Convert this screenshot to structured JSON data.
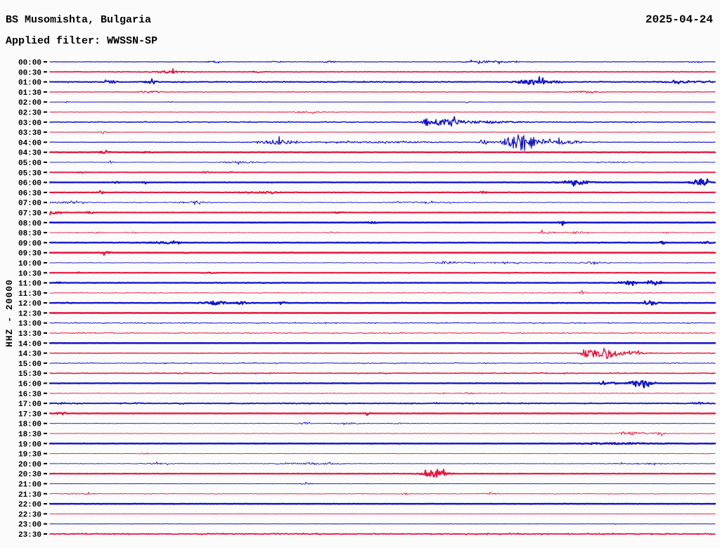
{
  "header": {
    "station": "BS Musomishta, Bulgaria",
    "filter": "Applied filter: WWSSN-SP",
    "date": "2025-04-24"
  },
  "scale_label": "HHZ - 20000",
  "colors": {
    "blue": "#1414cc",
    "red": "#e8143c",
    "tick": "#000000",
    "text": "#000000",
    "background": "#fbfbfb"
  },
  "chart_data": {
    "type": "helicorder",
    "title": "BS Musomishta, Bulgaria",
    "filter": "WWSSN-SP",
    "date": "2025-04-24",
    "channel_scale": "HHZ - 20000",
    "minutes_per_line": 30,
    "line_colors_alternate": [
      "blue",
      "red"
    ],
    "rows": [
      {
        "time": "00:00",
        "color": "blue",
        "lw": 1.2,
        "base": 0.5,
        "spk": 0.05,
        "bursts": [
          [
            303,
            10,
            1.1
          ],
          [
            395,
            12,
            0.9
          ],
          [
            470,
            12,
            0.9
          ],
          [
            695,
            35,
            1.4
          ],
          [
            988,
            10,
            0.9
          ]
        ]
      },
      {
        "time": "00:30",
        "color": "red",
        "lw": 1.7,
        "base": 0.4,
        "spk": 0.04,
        "bursts": [
          [
            243,
            20,
            1.7
          ],
          [
            368,
            8,
            1.1
          ]
        ]
      },
      {
        "time": "01:00",
        "color": "blue",
        "lw": 1.9,
        "base": 0.8,
        "spk": 0.06,
        "bursts": [
          [
            158,
            11,
            1.4
          ],
          [
            215,
            11,
            1.4
          ],
          [
            763,
            26,
            3.5
          ],
          [
            975,
            35,
            0.9
          ]
        ]
      },
      {
        "time": "01:30",
        "color": "red",
        "lw": 1.2,
        "base": 0.55,
        "spk": 0.05,
        "bursts": [
          [
            214,
            15,
            1.5
          ],
          [
            830,
            20,
            1.1
          ]
        ]
      },
      {
        "time": "02:00",
        "color": "blue",
        "lw": 1.0,
        "base": 0.3,
        "spk": 0.03,
        "bursts": [
          [
            95,
            2,
            1.6
          ],
          [
            242,
            5,
            0.9
          ],
          [
            665,
            3,
            1.6
          ]
        ]
      },
      {
        "time": "02:30",
        "color": "red",
        "lw": 1.0,
        "base": 0.5,
        "spk": 0.06,
        "bursts": [
          [
            438,
            28,
            0.9
          ]
        ]
      },
      {
        "time": "03:00",
        "color": "blue",
        "lw": 1.5,
        "base": 0.9,
        "spk": 0.06,
        "bursts": [
          [
            606,
            4,
            3.0
          ],
          [
            630,
            24,
            4.2
          ],
          [
            690,
            50,
            1.2
          ]
        ]
      },
      {
        "time": "03:30",
        "color": "red",
        "lw": 1.0,
        "base": 0.35,
        "spk": 0.03,
        "bursts": [
          [
            148,
            4,
            2.6
          ]
        ]
      },
      {
        "time": "04:00",
        "color": "blue",
        "lw": 1.2,
        "base": 0.5,
        "spk": 0.05,
        "bursts": [
          [
            395,
            24,
            3.2
          ],
          [
            540,
            90,
            0.9
          ],
          [
            688,
            5,
            6.5
          ],
          [
            742,
            25,
            12.0
          ],
          [
            800,
            28,
            2.6
          ]
        ]
      },
      {
        "time": "04:30",
        "color": "red",
        "lw": 2.3,
        "base": 0.4,
        "spk": 0.04,
        "bursts": [
          [
            148,
            8,
            1.4
          ],
          [
            210,
            6,
            1.1
          ]
        ]
      },
      {
        "time": "05:00",
        "color": "blue",
        "lw": 0.9,
        "base": 0.5,
        "spk": 0.05,
        "bursts": [
          [
            157,
            3,
            2.0
          ],
          [
            340,
            30,
            1.2
          ],
          [
            870,
            38,
            0.8
          ]
        ]
      },
      {
        "time": "05:30",
        "color": "red",
        "lw": 1.8,
        "base": 0.4,
        "spk": 0.04,
        "bursts": [
          [
            115,
            4,
            1.4
          ],
          [
            293,
            5,
            1.2
          ],
          [
            327,
            4,
            1.0
          ]
        ]
      },
      {
        "time": "06:00",
        "color": "blue",
        "lw": 2.3,
        "base": 0.4,
        "spk": 0.04,
        "bursts": [
          [
            165,
            4,
            1.0
          ],
          [
            207,
            4,
            1.0
          ],
          [
            820,
            22,
            2.6
          ],
          [
            996,
            11,
            5.0
          ]
        ]
      },
      {
        "time": "06:30",
        "color": "red",
        "lw": 2.1,
        "base": 0.45,
        "spk": 0.05,
        "bursts": [
          [
            143,
            4,
            2.0
          ],
          [
            375,
            22,
            0.9
          ],
          [
            686,
            5,
            1.4
          ]
        ]
      },
      {
        "time": "07:00",
        "color": "blue",
        "lw": 0.9,
        "base": 0.7,
        "spk": 0.07,
        "bursts": [
          [
            90,
            28,
            1.4
          ],
          [
            275,
            25,
            1.3
          ],
          [
            600,
            60,
            0.7
          ]
        ]
      },
      {
        "time": "07:30",
        "color": "red",
        "lw": 2.1,
        "base": 0.4,
        "spk": 0.04,
        "bursts": [
          [
            76,
            8,
            1.7
          ],
          [
            128,
            5,
            1.4
          ],
          [
            482,
            6,
            1.1
          ]
        ]
      },
      {
        "time": "08:00",
        "color": "blue",
        "lw": 2.5,
        "base": 0.3,
        "spk": 0.03,
        "bursts": [
          [
            530,
            8,
            0.8
          ],
          [
            800,
            4,
            1.8
          ]
        ]
      },
      {
        "time": "08:30",
        "color": "red",
        "lw": 0.9,
        "base": 0.6,
        "spk": 0.07,
        "bursts": [
          [
            137,
            9,
            1.1
          ],
          [
            190,
            5,
            0.9
          ],
          [
            474,
            9,
            0.9
          ],
          [
            775,
            14,
            1.5
          ],
          [
            820,
            14,
            1.3
          ],
          [
            950,
            9,
            0.8
          ]
        ]
      },
      {
        "time": "09:00",
        "color": "blue",
        "lw": 2.3,
        "base": 0.5,
        "spk": 0.05,
        "bursts": [
          [
            233,
            22,
            1.2
          ],
          [
            943,
            5,
            1.7
          ],
          [
            1005,
            7,
            0.9
          ]
        ]
      },
      {
        "time": "09:30",
        "color": "red",
        "lw": 2.5,
        "base": 0.3,
        "spk": 0.03,
        "bursts": [
          [
            150,
            8,
            1.2
          ],
          [
            265,
            3,
            0.9
          ]
        ]
      },
      {
        "time": "10:00",
        "color": "blue",
        "lw": 0.9,
        "base": 0.7,
        "spk": 0.07,
        "bursts": [
          [
            635,
            14,
            1.1
          ],
          [
            700,
            110,
            0.5
          ],
          [
            843,
            17,
            1.4
          ]
        ]
      },
      {
        "time": "10:30",
        "color": "red",
        "lw": 2.1,
        "base": 0.4,
        "spk": 0.04,
        "bursts": [
          [
            112,
            3,
            1.2
          ],
          [
            300,
            9,
            0.7
          ]
        ]
      },
      {
        "time": "11:00",
        "color": "blue",
        "lw": 2.3,
        "base": 0.5,
        "spk": 0.05,
        "bursts": [
          [
            83,
            3,
            1.1
          ],
          [
            895,
            12,
            2.2
          ],
          [
            929,
            10,
            2.2
          ]
        ]
      },
      {
        "time": "11:30",
        "color": "red",
        "lw": 0.9,
        "base": 0.8,
        "spk": 0.08,
        "bursts": [
          [
            828,
            7,
            1.4
          ]
        ]
      },
      {
        "time": "12:00",
        "color": "blue",
        "lw": 2.3,
        "base": 0.5,
        "spk": 0.05,
        "bursts": [
          [
            97,
            4,
            1.1
          ],
          [
            305,
            16,
            2.2
          ],
          [
            344,
            8,
            1.8
          ],
          [
            402,
            6,
            0.9
          ],
          [
            927,
            9,
            3.0
          ]
        ]
      },
      {
        "time": "12:30",
        "color": "red",
        "lw": 2.5,
        "base": 0.3,
        "spk": 0.03,
        "bursts": []
      },
      {
        "time": "13:00",
        "color": "blue",
        "lw": 1.0,
        "base": 0.95,
        "spk": 0.09,
        "bursts": []
      },
      {
        "time": "13:30",
        "color": "red",
        "lw": 1.0,
        "base": 0.95,
        "spk": 0.09,
        "bursts": []
      },
      {
        "time": "14:00",
        "color": "blue",
        "lw": 2.5,
        "base": 0.25,
        "spk": 0.02,
        "bursts": []
      },
      {
        "time": "14:30",
        "color": "red",
        "lw": 1.4,
        "base": 0.5,
        "spk": 0.05,
        "bursts": [
          [
            838,
            11,
            6.5
          ],
          [
            864,
            13,
            7.5
          ],
          [
            895,
            22,
            2.2
          ]
        ]
      },
      {
        "time": "15:00",
        "color": "blue",
        "lw": 1.0,
        "base": 0.95,
        "spk": 0.08,
        "bursts": []
      },
      {
        "time": "15:30",
        "color": "red",
        "lw": 1.5,
        "base": 0.8,
        "spk": 0.07,
        "bursts": []
      },
      {
        "time": "16:00",
        "color": "blue",
        "lw": 2.3,
        "base": 0.4,
        "spk": 0.04,
        "bursts": [
          [
            857,
            7,
            1.4
          ],
          [
            872,
            5,
            1.4
          ],
          [
            908,
            15,
            4.3
          ]
        ]
      },
      {
        "time": "16:30",
        "color": "red",
        "lw": 0.9,
        "base": 0.7,
        "spk": 0.07,
        "bursts": [
          [
            628,
            5,
            1.1
          ],
          [
            665,
            7,
            1.1
          ]
        ]
      },
      {
        "time": "17:00",
        "color": "blue",
        "lw": 1.8,
        "base": 0.9,
        "spk": 0.08,
        "bursts": [
          [
            995,
            6,
            1.4
          ]
        ]
      },
      {
        "time": "17:30",
        "color": "red",
        "lw": 2.3,
        "base": 0.4,
        "spk": 0.04,
        "bursts": [
          [
            88,
            8,
            1.4
          ],
          [
            524,
            4,
            1.2
          ]
        ]
      },
      {
        "time": "18:00",
        "color": "blue",
        "lw": 0.9,
        "base": 0.4,
        "spk": 0.04,
        "bursts": [
          [
            432,
            9,
            1.5
          ],
          [
            497,
            18,
            0.9
          ],
          [
            568,
            14,
            0.7
          ]
        ]
      },
      {
        "time": "18:30",
        "color": "red",
        "lw": 0.9,
        "base": 0.5,
        "spk": 0.05,
        "bursts": [
          [
            885,
            3,
            2.4
          ],
          [
            900,
            18,
            2.0
          ],
          [
            937,
            11,
            1.5
          ]
        ]
      },
      {
        "time": "19:00",
        "color": "blue",
        "lw": 2.4,
        "base": 0.4,
        "spk": 0.04,
        "bursts": [
          [
            880,
            55,
            0.8
          ]
        ]
      },
      {
        "time": "19:30",
        "color": "red",
        "lw": 0.9,
        "base": 0.4,
        "spk": 0.04,
        "bursts": [
          [
            206,
            7,
            0.9
          ]
        ]
      },
      {
        "time": "20:00",
        "color": "blue",
        "lw": 0.9,
        "base": 0.5,
        "spk": 0.05,
        "bursts": [
          [
            226,
            22,
            0.9
          ],
          [
            445,
            38,
            1.5
          ],
          [
            915,
            45,
            0.8
          ]
        ]
      },
      {
        "time": "20:30",
        "color": "red",
        "lw": 2.1,
        "base": 0.4,
        "spk": 0.04,
        "bursts": [
          [
            618,
            16,
            4.6
          ]
        ]
      },
      {
        "time": "21:00",
        "color": "blue",
        "lw": 0.9,
        "base": 0.4,
        "spk": 0.04,
        "bursts": [
          [
            435,
            8,
            1.5
          ]
        ]
      },
      {
        "time": "21:30",
        "color": "red",
        "lw": 0.9,
        "base": 0.6,
        "spk": 0.06,
        "bursts": [
          [
            115,
            22,
            0.9
          ],
          [
            577,
            6,
            1.2
          ],
          [
            700,
            8,
            1.1
          ]
        ]
      },
      {
        "time": "22:00",
        "color": "blue",
        "lw": 2.4,
        "base": 0.3,
        "spk": 0.03,
        "bursts": []
      },
      {
        "time": "22:30",
        "color": "red",
        "lw": 0.9,
        "base": 0.4,
        "spk": 0.04,
        "bursts": []
      },
      {
        "time": "23:00",
        "color": "blue",
        "lw": 1.0,
        "base": 0.3,
        "spk": 0.03,
        "bursts": [
          [
            875,
            2,
            0.9
          ]
        ]
      },
      {
        "time": "23:30",
        "color": "red",
        "lw": 1.7,
        "base": 1.0,
        "spk": 0.12,
        "bursts": []
      }
    ]
  }
}
